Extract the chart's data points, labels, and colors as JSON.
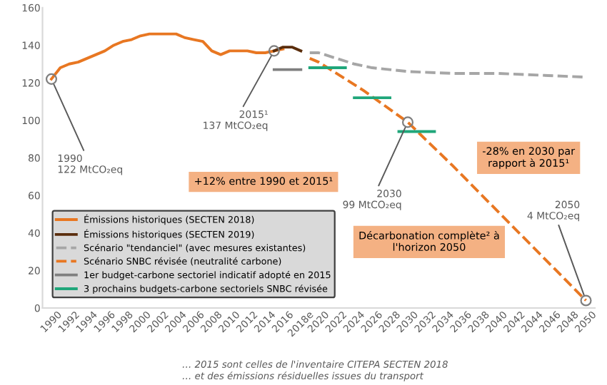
{
  "chart_data": {
    "type": "line",
    "xlim": [
      1989,
      2051
    ],
    "xticks": [
      1990,
      1992,
      1994,
      1996,
      1998,
      2000,
      2002,
      2004,
      2006,
      2008,
      2010,
      2012,
      2014,
      2016,
      {
        "value": 2018,
        "label": "2018e"
      },
      2020,
      2022,
      2024,
      2026,
      2028,
      2030,
      2032,
      2034,
      2036,
      2038,
      2040,
      2042,
      2044,
      2046,
      2048,
      2050
    ],
    "ylim": [
      0,
      160
    ],
    "yticks": [
      0,
      20,
      40,
      60,
      80,
      100,
      120,
      140,
      160
    ],
    "grid": false,
    "legend": "bottom left",
    "series": [
      {
        "name": "Émissions historiques (SECTEN 2018)",
        "color": "#e87722",
        "line_style": "solid",
        "x": [
          1990,
          1991,
          1992,
          1993,
          1994,
          1995,
          1996,
          1997,
          1998,
          1999,
          2000,
          2001,
          2002,
          2003,
          2004,
          2005,
          2006,
          2007,
          2008,
          2009,
          2010,
          2011,
          2012,
          2013,
          2014,
          2015,
          2016
        ],
        "values": [
          122,
          128,
          130,
          131,
          133,
          135,
          137,
          140,
          142,
          143,
          145,
          146,
          146,
          146,
          146,
          144,
          143,
          142,
          137,
          135,
          137,
          137,
          137,
          136,
          136,
          137,
          138
        ]
      },
      {
        "name": "Émissions historiques (SECTEN 2019)",
        "color": "#5a2d0c",
        "line_style": "solid",
        "x": [
          2015,
          2016,
          2017,
          2018
        ],
        "values": [
          137,
          139,
          139,
          137
        ]
      },
      {
        "name": "Scénario \"tendanciel\" (avec mesures existantes)",
        "color": "#a6a6a6",
        "line_style": "dashed",
        "x": [
          2019,
          2020,
          2022,
          2024,
          2026,
          2030,
          2035,
          2040,
          2045,
          2050
        ],
        "values": [
          136,
          136,
          133,
          130,
          128,
          126,
          125,
          125,
          124,
          123
        ]
      },
      {
        "name": "Scénario SNBC révisée (neutralité carbone)",
        "color": "#e87722",
        "line_style": "dashed",
        "x": [
          2019,
          2020,
          2025,
          2030,
          2035,
          2040,
          2045,
          2050
        ],
        "values": [
          133,
          131,
          116,
          99,
          76,
          52,
          28,
          4
        ]
      },
      {
        "name": "1er budget-carbone sectoriel indicatif adopté en 2015",
        "color": "#7f7f7f",
        "line_style": "solid",
        "x": [
          2015,
          2018
        ],
        "values": [
          127,
          127
        ]
      },
      {
        "name": "3 prochains budgets-carbone sectoriels SNBC révisée",
        "color": "#1fa67a",
        "line_style": "solid",
        "x": [
          2019,
          2023,
          2023.5,
          2024,
          2028,
          2028.5,
          2029,
          2033
        ],
        "values": [
          128,
          128,
          null,
          112,
          112,
          null,
          94,
          94
        ]
      }
    ],
    "annotations": [
      {
        "text": "1990\n122 MtCO₂eq",
        "x": 1990,
        "y": 122
      },
      {
        "text": "2015¹\n137 MtCO₂eq",
        "x": 2015,
        "y": 137
      },
      {
        "text": "2030\n99 MtCO₂eq",
        "x": 2030,
        "y": 99
      },
      {
        "text": "2050\n4 MtCO₂eq",
        "x": 2050,
        "y": 4
      },
      "+12% entre 1990 et 2015¹",
      "-28% en 2030 par\nrapport à 2015¹",
      "Décarbonation complète² à\nl'horizon 2050",
      "… 2015 sont celles de l'inventaire CITEPA SECTEN 2018",
      "… et des émissions résiduelles issues du transport"
    ]
  }
}
